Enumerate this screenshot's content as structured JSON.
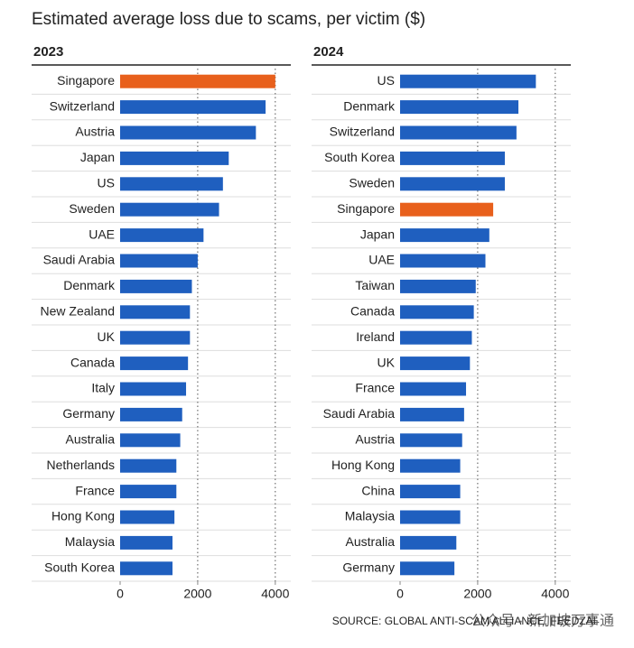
{
  "title": "Estimated average loss due to scams, per victim ($)",
  "source": "SOURCE: GLOBAL ANTI-SCAM ALLIANCE, FEEDZAI",
  "watermark": "公众号 · 新加坡万事通",
  "chart_data": [
    {
      "type": "bar",
      "orientation": "horizontal",
      "title": "2023",
      "categories": [
        "Singapore",
        "Switzerland",
        "Austria",
        "Japan",
        "US",
        "Sweden",
        "UAE",
        "Saudi Arabia",
        "Denmark",
        "New Zealand",
        "UK",
        "Canada",
        "Italy",
        "Germany",
        "Australia",
        "Netherlands",
        "France",
        "Hong Kong",
        "Malaysia",
        "South Korea"
      ],
      "values": [
        4000,
        3750,
        3500,
        2800,
        2650,
        2550,
        2150,
        2000,
        1850,
        1800,
        1800,
        1750,
        1700,
        1600,
        1550,
        1450,
        1450,
        1400,
        1350,
        1350
      ],
      "colors": [
        "#e8601c",
        "#1f5fbf",
        "#1f5fbf",
        "#1f5fbf",
        "#1f5fbf",
        "#1f5fbf",
        "#1f5fbf",
        "#1f5fbf",
        "#1f5fbf",
        "#1f5fbf",
        "#1f5fbf",
        "#1f5fbf",
        "#1f5fbf",
        "#1f5fbf",
        "#1f5fbf",
        "#1f5fbf",
        "#1f5fbf",
        "#1f5fbf",
        "#1f5fbf",
        "#1f5fbf"
      ],
      "xlim": [
        0,
        4400
      ],
      "xticks": [
        0,
        2000,
        4000
      ],
      "grid": true
    },
    {
      "type": "bar",
      "orientation": "horizontal",
      "title": "2024",
      "categories": [
        "US",
        "Denmark",
        "Switzerland",
        "South Korea",
        "Sweden",
        "Singapore",
        "Japan",
        "UAE",
        "Taiwan",
        "Canada",
        "Ireland",
        "UK",
        "France",
        "Saudi Arabia",
        "Austria",
        "Hong Kong",
        "China",
        "Malaysia",
        "Australia",
        "Germany"
      ],
      "values": [
        3500,
        3050,
        3000,
        2700,
        2700,
        2400,
        2300,
        2200,
        1950,
        1900,
        1850,
        1800,
        1700,
        1650,
        1600,
        1550,
        1550,
        1550,
        1450,
        1400
      ],
      "colors": [
        "#1f5fbf",
        "#1f5fbf",
        "#1f5fbf",
        "#1f5fbf",
        "#1f5fbf",
        "#e8601c",
        "#1f5fbf",
        "#1f5fbf",
        "#1f5fbf",
        "#1f5fbf",
        "#1f5fbf",
        "#1f5fbf",
        "#1f5fbf",
        "#1f5fbf",
        "#1f5fbf",
        "#1f5fbf",
        "#1f5fbf",
        "#1f5fbf",
        "#1f5fbf",
        "#1f5fbf"
      ],
      "xlim": [
        0,
        4400
      ],
      "xticks": [
        0,
        2000,
        4000
      ],
      "grid": true
    }
  ]
}
